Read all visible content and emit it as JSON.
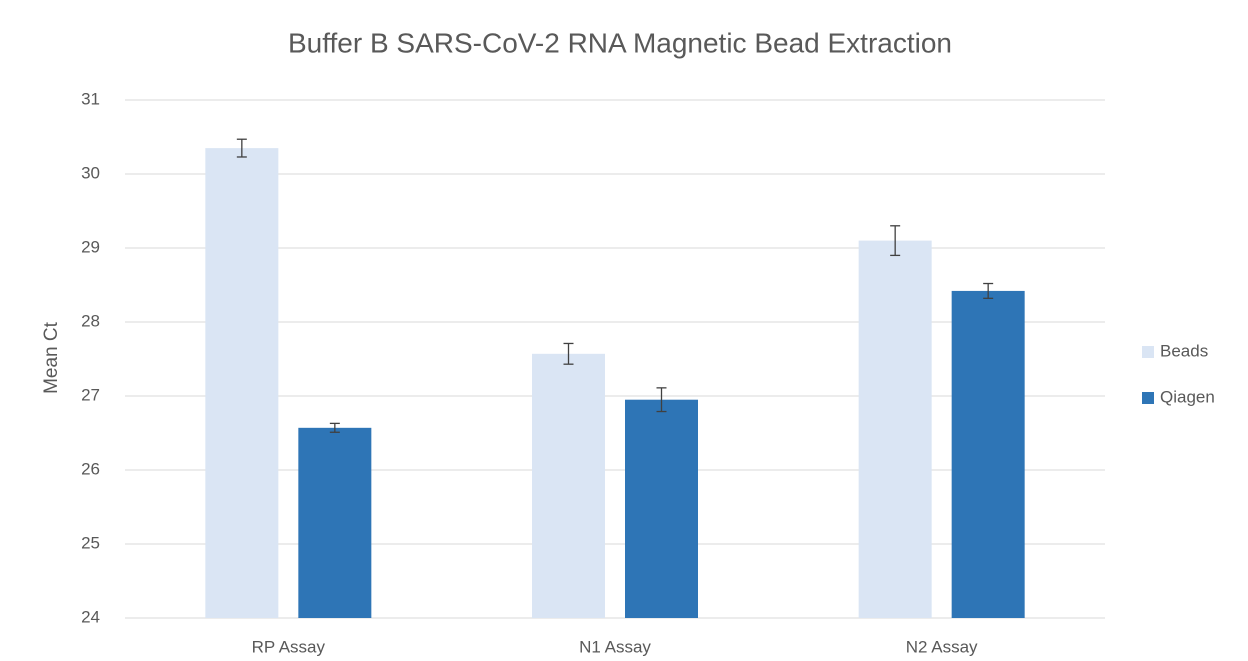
{
  "chart_data": {
    "type": "bar",
    "title": "Buffer B SARS-CoV-2 RNA Magnetic Bead Extraction",
    "y_label": "Mean Ct",
    "categories": [
      "RP Assay",
      "N1 Assay",
      "N2 Assay"
    ],
    "series": [
      {
        "name": "Beads",
        "color": "#dae5f4",
        "values": [
          30.35,
          27.57,
          29.1
        ],
        "errors": [
          0.12,
          0.14,
          0.2
        ]
      },
      {
        "name": "Qiagen",
        "color": "#2e75b6",
        "values": [
          26.57,
          26.95,
          28.42
        ],
        "errors": [
          0.06,
          0.16,
          0.1
        ]
      }
    ],
    "ylim": [
      24,
      31
    ],
    "yticks": [
      24,
      25,
      26,
      27,
      28,
      29,
      30,
      31
    ],
    "grid": true,
    "legend": "right"
  }
}
